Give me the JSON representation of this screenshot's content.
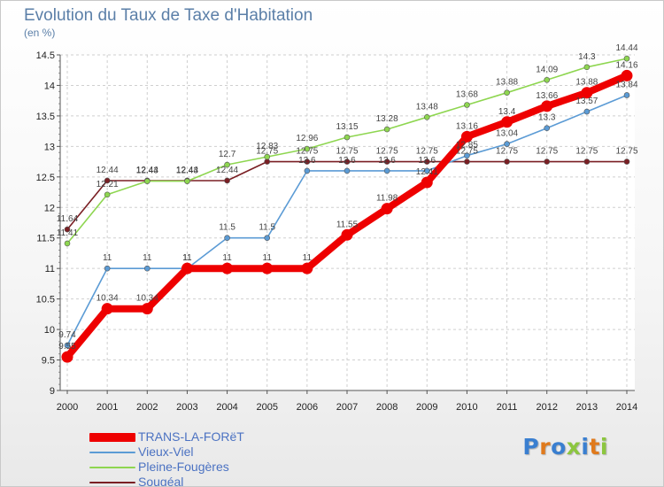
{
  "title": "Evolution du Taux de Taxe d'Habitation",
  "unit_label": "(en %)",
  "brand": "Proxiti",
  "chart_data": {
    "type": "line",
    "x": [
      2000,
      2001,
      2002,
      2003,
      2004,
      2005,
      2006,
      2007,
      2008,
      2009,
      2010,
      2011,
      2012,
      2013,
      2014
    ],
    "ylim": [
      9,
      14.5
    ],
    "yticks": [
      9,
      9.5,
      10,
      10.5,
      11,
      11.5,
      12,
      12.5,
      13,
      13.5,
      14,
      14.5
    ],
    "ytick_labels": [
      "9",
      "9.5",
      "10",
      "10.5",
      "11",
      "11.5",
      "12",
      "12.5",
      "13",
      "13.5",
      "14",
      "14.5"
    ],
    "grid": true,
    "legend_position": "bottom-left",
    "series": [
      {
        "name": "TRANS-LA-FORëT",
        "color": "#ee0000",
        "values": [
          9.55,
          10.34,
          10.34,
          11,
          11,
          11,
          11,
          11.55,
          11.98,
          12.41,
          13.16,
          13.4,
          13.66,
          13.88,
          14.16
        ],
        "labels": [
          "9.55",
          "10.34",
          "10.34",
          "11",
          "11",
          "11",
          "11",
          "11.55",
          "11.98",
          "12.41",
          "13.16",
          "13.4",
          "13.66",
          "13.88",
          "14.16"
        ]
      },
      {
        "name": "Vieux-Viel",
        "color": "#5b9bd5",
        "values": [
          9.74,
          11,
          11,
          11,
          11.5,
          11.5,
          12.6,
          12.6,
          12.6,
          12.6,
          12.85,
          13.04,
          13.3,
          13.57,
          13.84
        ],
        "labels": [
          "9.74",
          "11",
          "11",
          "11",
          "11.5",
          "11.5",
          "12.6",
          "12.6",
          "12.6",
          "12.6",
          "12.85",
          "13.04",
          "13.3",
          "13.57",
          "13.84"
        ]
      },
      {
        "name": "Pleine-Fougères",
        "color": "#8ed650",
        "values": [
          11.41,
          12.21,
          12.43,
          12.43,
          12.7,
          12.83,
          12.96,
          13.15,
          13.28,
          13.48,
          13.68,
          13.88,
          14.09,
          14.3,
          14.44
        ],
        "labels": [
          "11.41",
          "12.21",
          "12.43",
          "12.43",
          "12.7",
          "12.83",
          "12.96",
          "13.15",
          "13.28",
          "13.48",
          "13.68",
          "13.88",
          "14.09",
          "14.3",
          "14.44"
        ]
      },
      {
        "name": "Sougéal",
        "color": "#7a1f24",
        "values": [
          11.64,
          12.44,
          12.44,
          12.44,
          12.44,
          12.75,
          12.75,
          12.75,
          12.75,
          12.75,
          12.75,
          12.75,
          12.75,
          12.75,
          12.75
        ],
        "labels": [
          "11.64",
          "12.44",
          "12.44",
          "12.44",
          "12.44",
          "12.75",
          "12.75",
          "12.75",
          "12.75",
          "12.75",
          "12.75",
          "12.75",
          "12.75",
          "12.75",
          "12.75"
        ]
      }
    ]
  }
}
